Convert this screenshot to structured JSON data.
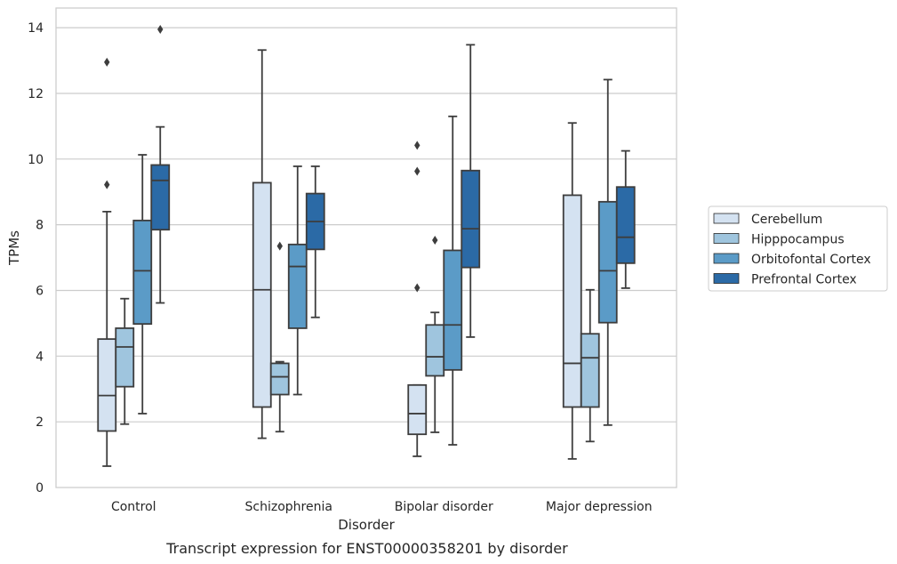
{
  "chart_data": {
    "type": "box",
    "caption": "Transcript expression for ENST00000358201 by disorder",
    "xlabel": "Disorder",
    "ylabel": "TPMs",
    "ylim": [
      0,
      14.6
    ],
    "yticks": [
      0,
      2,
      4,
      6,
      8,
      10,
      12,
      14
    ],
    "grid": "horizontal",
    "legend_position": "right",
    "categories": [
      "Control",
      "Schizophrenia",
      "Bipolar disorder",
      "Major depression"
    ],
    "series": [
      {
        "name": "Cerebellum",
        "color": "#d4e2f1",
        "boxes": [
          {
            "min": 0.65,
            "q1": 1.72,
            "median": 2.8,
            "q3": 4.52,
            "max": 8.4,
            "outliers": [
              9.22,
              12.95
            ]
          },
          {
            "min": 1.5,
            "q1": 2.45,
            "median": 6.02,
            "q3": 9.28,
            "max": 13.32,
            "outliers": []
          },
          {
            "min": 0.95,
            "q1": 1.62,
            "median": 2.25,
            "q3": 3.12,
            "max": 3.12,
            "outliers": [
              6.08,
              9.63,
              10.42
            ]
          },
          {
            "min": 0.87,
            "q1": 2.45,
            "median": 3.78,
            "q3": 8.9,
            "max": 11.1,
            "outliers": []
          }
        ]
      },
      {
        "name": "Hipppocampus",
        "color": "#9fc5de",
        "boxes": [
          {
            "min": 1.93,
            "q1": 3.07,
            "median": 4.28,
            "q3": 4.85,
            "max": 5.75,
            "outliers": []
          },
          {
            "min": 1.7,
            "q1": 2.83,
            "median": 3.37,
            "q3": 3.78,
            "max": 3.83,
            "outliers": [
              7.35
            ]
          },
          {
            "min": 1.68,
            "q1": 3.4,
            "median": 3.98,
            "q3": 4.95,
            "max": 5.33,
            "outliers": [
              7.53
            ]
          },
          {
            "min": 1.4,
            "q1": 2.45,
            "median": 3.95,
            "q3": 4.68,
            "max": 6.02,
            "outliers": []
          }
        ]
      },
      {
        "name": "Orbitofontal Cortex",
        "color": "#5b9bc7",
        "boxes": [
          {
            "min": 2.25,
            "q1": 4.98,
            "median": 6.6,
            "q3": 8.13,
            "max": 10.13,
            "outliers": []
          },
          {
            "min": 2.83,
            "q1": 4.85,
            "median": 6.73,
            "q3": 7.4,
            "max": 9.78,
            "outliers": []
          },
          {
            "min": 1.3,
            "q1": 3.58,
            "median": 4.95,
            "q3": 7.22,
            "max": 11.3,
            "outliers": []
          },
          {
            "min": 1.9,
            "q1": 5.02,
            "median": 6.6,
            "q3": 8.7,
            "max": 12.42,
            "outliers": []
          }
        ]
      },
      {
        "name": "Prefrontal Cortex",
        "color": "#2b6aa6",
        "boxes": [
          {
            "min": 5.62,
            "q1": 7.85,
            "median": 9.35,
            "q3": 9.82,
            "max": 10.98,
            "outliers": [
              13.95
            ]
          },
          {
            "min": 5.18,
            "q1": 7.25,
            "median": 8.1,
            "q3": 8.95,
            "max": 9.78,
            "outliers": []
          },
          {
            "min": 4.58,
            "q1": 6.7,
            "median": 7.88,
            "q3": 9.65,
            "max": 13.48,
            "outliers": []
          },
          {
            "min": 6.07,
            "q1": 6.83,
            "median": 7.62,
            "q3": 9.15,
            "max": 10.25,
            "outliers": []
          }
        ]
      }
    ]
  }
}
